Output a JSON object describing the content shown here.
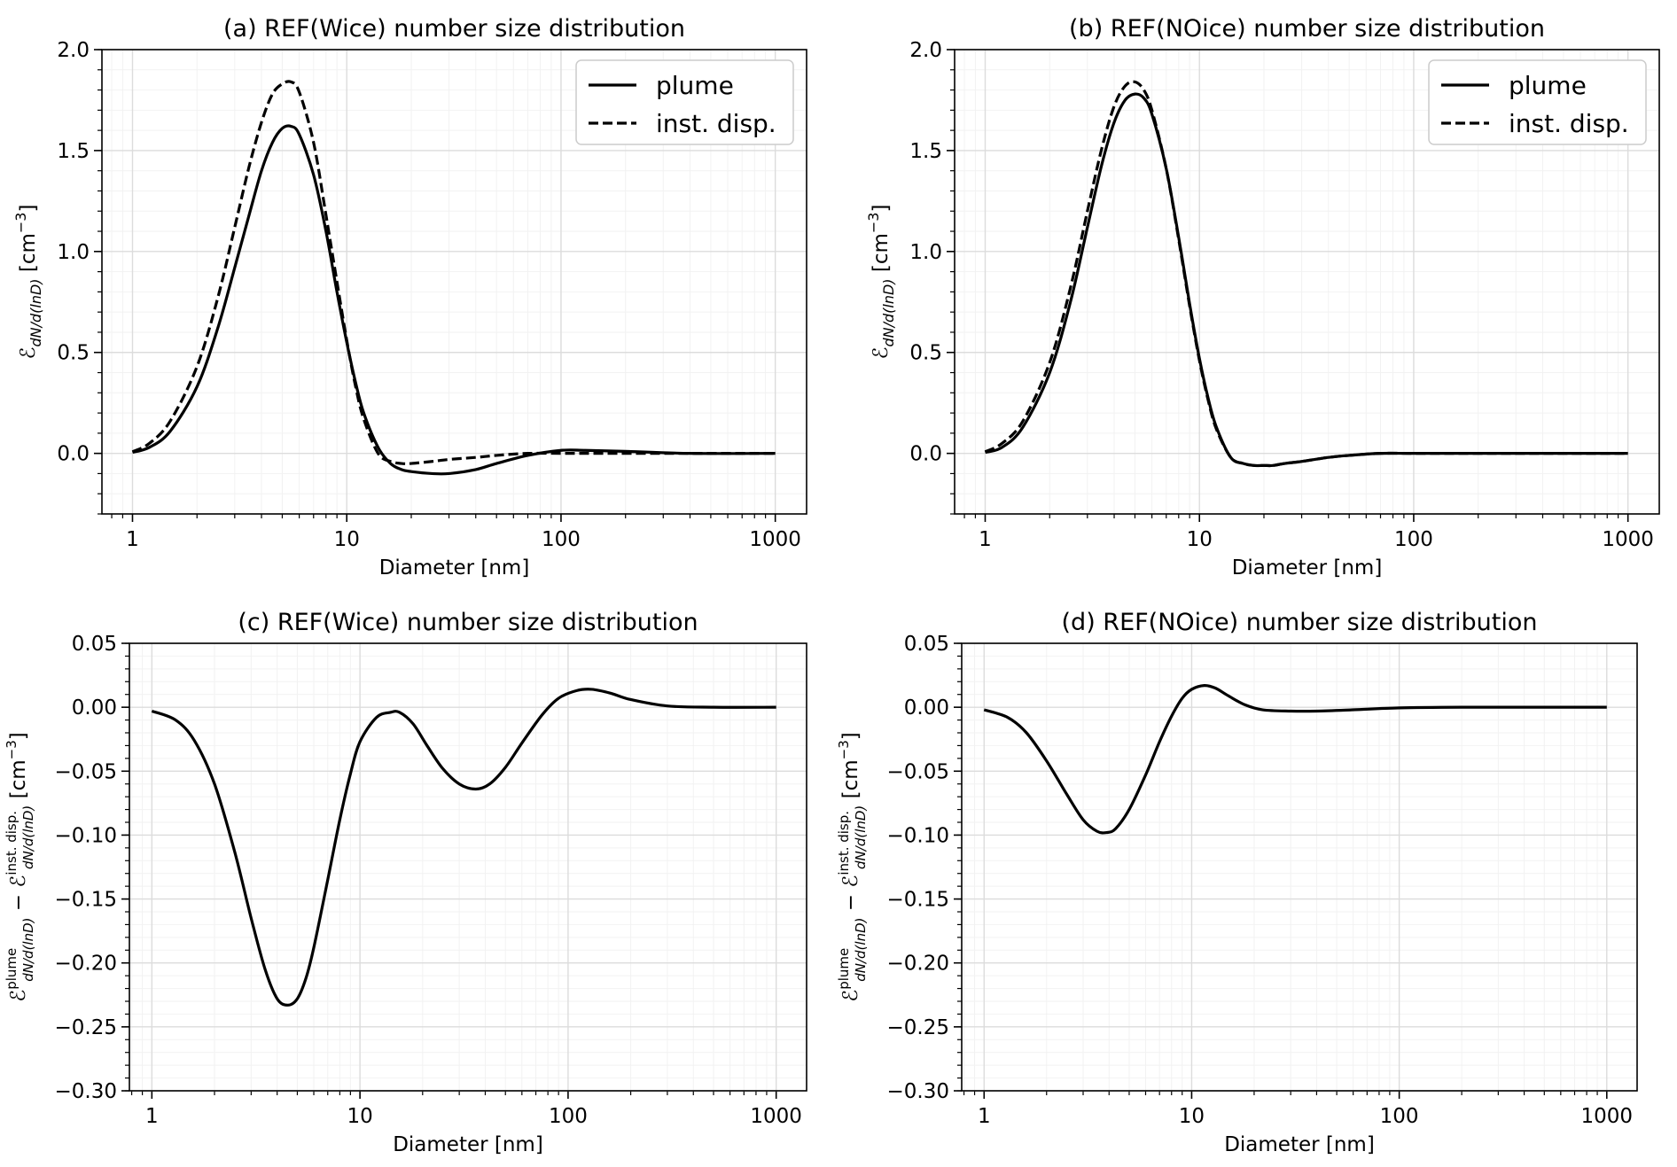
{
  "chart_data": [
    {
      "type": "line",
      "title": "(a) REF(Wice) number size distribution",
      "xlabel": "Diameter [nm]",
      "ylabel_main": "ℰ",
      "ylabel_sub": "dN/d(lnD)",
      "ylabel_unit": " [cm",
      "ylabel_exp": "−3",
      "ylabel_close": "]",
      "xscale": "log",
      "xlim": [
        0.72,
        1400
      ],
      "ylim": [
        -0.3,
        2.0
      ],
      "xticks": [
        1,
        10,
        100,
        1000
      ],
      "xtick_labels": [
        "1",
        "10",
        "100",
        "1000"
      ],
      "yticks": [
        -0.0,
        0.5,
        1.0,
        1.5,
        2.0
      ],
      "ytick_labels": [
        "0.0",
        "0.5",
        "1.0",
        "1.5",
        "2.0"
      ],
      "grid": true,
      "legend": "top-right",
      "series": [
        {
          "name": "plume",
          "style": "solid",
          "x": [
            1,
            1.2,
            1.5,
            2,
            2.5,
            3,
            3.5,
            4,
            4.5,
            5,
            5.5,
            6,
            7,
            8,
            9,
            10,
            11,
            12,
            14,
            16,
            18,
            20,
            25,
            30,
            40,
            50,
            70,
            100,
            130,
            200,
            400,
            1000
          ],
          "y": [
            0.005,
            0.03,
            0.11,
            0.33,
            0.62,
            0.92,
            1.18,
            1.4,
            1.54,
            1.61,
            1.62,
            1.58,
            1.38,
            1.1,
            0.8,
            0.55,
            0.35,
            0.2,
            0.03,
            -0.05,
            -0.08,
            -0.09,
            -0.1,
            -0.1,
            -0.08,
            -0.05,
            -0.01,
            0.015,
            0.015,
            0.01,
            0.0,
            0.0
          ]
        },
        {
          "name": "inst. disp.",
          "style": "dashed",
          "x": [
            1,
            1.2,
            1.5,
            2,
            2.5,
            3,
            3.5,
            4,
            4.5,
            5,
            5.5,
            6,
            7,
            8,
            9,
            10,
            11,
            12,
            14,
            16,
            18,
            20,
            25,
            30,
            40,
            50,
            70,
            100,
            130,
            200,
            400,
            1000
          ],
          "y": [
            0.008,
            0.05,
            0.16,
            0.43,
            0.77,
            1.12,
            1.42,
            1.64,
            1.78,
            1.83,
            1.84,
            1.79,
            1.54,
            1.18,
            0.85,
            0.56,
            0.33,
            0.17,
            0.0,
            -0.04,
            -0.05,
            -0.05,
            -0.04,
            -0.03,
            -0.02,
            -0.01,
            0.0,
            0.0,
            0.0,
            0.0,
            0.0,
            0.0
          ]
        }
      ]
    },
    {
      "type": "line",
      "title": "(b) REF(NOice) number size distribution",
      "xlabel": "Diameter [nm]",
      "ylabel_main": "ℰ",
      "ylabel_sub": "dN/d(lnD)",
      "ylabel_unit": " [cm",
      "ylabel_exp": "−3",
      "ylabel_close": "]",
      "xscale": "log",
      "xlim": [
        0.72,
        1400
      ],
      "ylim": [
        -0.3,
        2.0
      ],
      "xticks": [
        1,
        10,
        100,
        1000
      ],
      "xtick_labels": [
        "1",
        "10",
        "100",
        "1000"
      ],
      "yticks": [
        -0.0,
        0.5,
        1.0,
        1.5,
        2.0
      ],
      "ytick_labels": [
        "0.0",
        "0.5",
        "1.0",
        "1.5",
        "2.0"
      ],
      "grid": true,
      "legend": "top-right",
      "series": [
        {
          "name": "plume",
          "style": "solid",
          "x": [
            1,
            1.2,
            1.5,
            2,
            2.5,
            3,
            3.5,
            4,
            4.5,
            5,
            5.5,
            6,
            7,
            8,
            9,
            10,
            11,
            12,
            14,
            16,
            18,
            20,
            22,
            25,
            30,
            40,
            50,
            70,
            100,
            200,
            400,
            1000
          ],
          "y": [
            0.005,
            0.03,
            0.13,
            0.4,
            0.75,
            1.12,
            1.43,
            1.64,
            1.75,
            1.78,
            1.76,
            1.68,
            1.41,
            1.07,
            0.74,
            0.47,
            0.27,
            0.13,
            -0.02,
            -0.05,
            -0.06,
            -0.06,
            -0.06,
            -0.05,
            -0.04,
            -0.02,
            -0.01,
            0.0,
            0.0,
            0.0,
            0.0,
            0.0
          ]
        },
        {
          "name": "inst. disp.",
          "style": "dashed",
          "x": [
            1,
            1.2,
            1.5,
            2,
            2.5,
            3,
            3.5,
            4,
            4.5,
            5,
            5.5,
            6,
            7,
            8,
            9,
            10,
            11,
            12,
            14,
            16,
            18,
            20,
            22,
            25,
            30,
            40,
            50,
            70,
            100,
            200,
            400,
            1000
          ],
          "y": [
            0.008,
            0.05,
            0.16,
            0.45,
            0.82,
            1.2,
            1.51,
            1.72,
            1.82,
            1.84,
            1.8,
            1.7,
            1.41,
            1.06,
            0.73,
            0.46,
            0.26,
            0.12,
            -0.02,
            -0.05,
            -0.06,
            -0.06,
            -0.06,
            -0.05,
            -0.04,
            -0.02,
            -0.01,
            0.0,
            0.0,
            0.0,
            0.0,
            0.0
          ]
        }
      ]
    },
    {
      "type": "line",
      "title": "(c) REF(Wice) number size distribution",
      "xlabel": "Diameter [nm]",
      "ylabel_main": "ℰ",
      "ylabel_sup1": "plume",
      "ylabel_sub1": "dN/d(lnD)",
      "ylabel_mid": " − ℰ",
      "ylabel_sup2": "inst. disp.",
      "ylabel_sub2": "dN/d(lnD)",
      "ylabel_unit": " [cm",
      "ylabel_exp": "−3",
      "ylabel_close": "]",
      "xscale": "log",
      "xlim": [
        0.78,
        1400
      ],
      "ylim": [
        -0.3,
        0.05
      ],
      "xticks": [
        1,
        10,
        100,
        1000
      ],
      "xtick_labels": [
        "1",
        "10",
        "100",
        "1000"
      ],
      "yticks": [
        -0.3,
        -0.25,
        -0.2,
        -0.15,
        -0.1,
        -0.05,
        0.0,
        0.05
      ],
      "ytick_labels": [
        "−0.30",
        "−0.25",
        "−0.20",
        "−0.15",
        "−0.10",
        "−0.05",
        "0.00",
        "0.05"
      ],
      "grid": true,
      "series": [
        {
          "style": "solid",
          "x": [
            1,
            1.3,
            1.6,
            2,
            2.5,
            3,
            3.5,
            4,
            4.5,
            5,
            5.5,
            6,
            7,
            8,
            9,
            10,
            12,
            14,
            15.5,
            18,
            21,
            25,
            30,
            36,
            42,
            50,
            60,
            75,
            90,
            110,
            130,
            160,
            200,
            300,
            500,
            1000
          ],
          "y": [
            -0.003,
            -0.01,
            -0.026,
            -0.06,
            -0.113,
            -0.165,
            -0.205,
            -0.228,
            -0.233,
            -0.228,
            -0.212,
            -0.188,
            -0.135,
            -0.088,
            -0.052,
            -0.027,
            -0.008,
            -0.004,
            -0.004,
            -0.013,
            -0.03,
            -0.048,
            -0.06,
            -0.064,
            -0.06,
            -0.047,
            -0.028,
            -0.006,
            0.007,
            0.013,
            0.014,
            0.011,
            0.006,
            0.001,
            0.0,
            0.0
          ]
        }
      ]
    },
    {
      "type": "line",
      "title": "(d) REF(NOice) number size distribution",
      "xlabel": "Diameter [nm]",
      "ylabel_main": "ℰ",
      "ylabel_sup1": "plume",
      "ylabel_sub1": "dN/d(lnD)",
      "ylabel_mid": " − ℰ",
      "ylabel_sup2": "inst. disp.",
      "ylabel_sub2": "dN/d(lnD)",
      "ylabel_unit": " [cm",
      "ylabel_exp": "−3",
      "ylabel_close": "]",
      "xscale": "log",
      "xlim": [
        0.78,
        1400
      ],
      "ylim": [
        -0.3,
        0.05
      ],
      "xticks": [
        1,
        10,
        100,
        1000
      ],
      "xtick_labels": [
        "1",
        "10",
        "100",
        "1000"
      ],
      "yticks": [
        -0.3,
        -0.25,
        -0.2,
        -0.15,
        -0.1,
        -0.05,
        0.0,
        0.05
      ],
      "ytick_labels": [
        "−0.30",
        "−0.25",
        "−0.20",
        "−0.15",
        "−0.10",
        "−0.05",
        "0.00",
        "0.05"
      ],
      "grid": true,
      "series": [
        {
          "style": "solid",
          "x": [
            1,
            1.3,
            1.6,
            2,
            2.5,
            3,
            3.5,
            3.9,
            4.3,
            5,
            6,
            7,
            8,
            9,
            10,
            11.5,
            13,
            15,
            18,
            22,
            30,
            40,
            60,
            100,
            200,
            500,
            1000
          ],
          "y": [
            -0.002,
            -0.008,
            -0.02,
            -0.042,
            -0.068,
            -0.088,
            -0.097,
            -0.098,
            -0.095,
            -0.08,
            -0.053,
            -0.027,
            -0.007,
            0.007,
            0.014,
            0.017,
            0.015,
            0.009,
            0.002,
            -0.002,
            -0.003,
            -0.003,
            -0.002,
            -0.0005,
            0.0,
            0.0,
            0.0
          ]
        }
      ]
    }
  ]
}
